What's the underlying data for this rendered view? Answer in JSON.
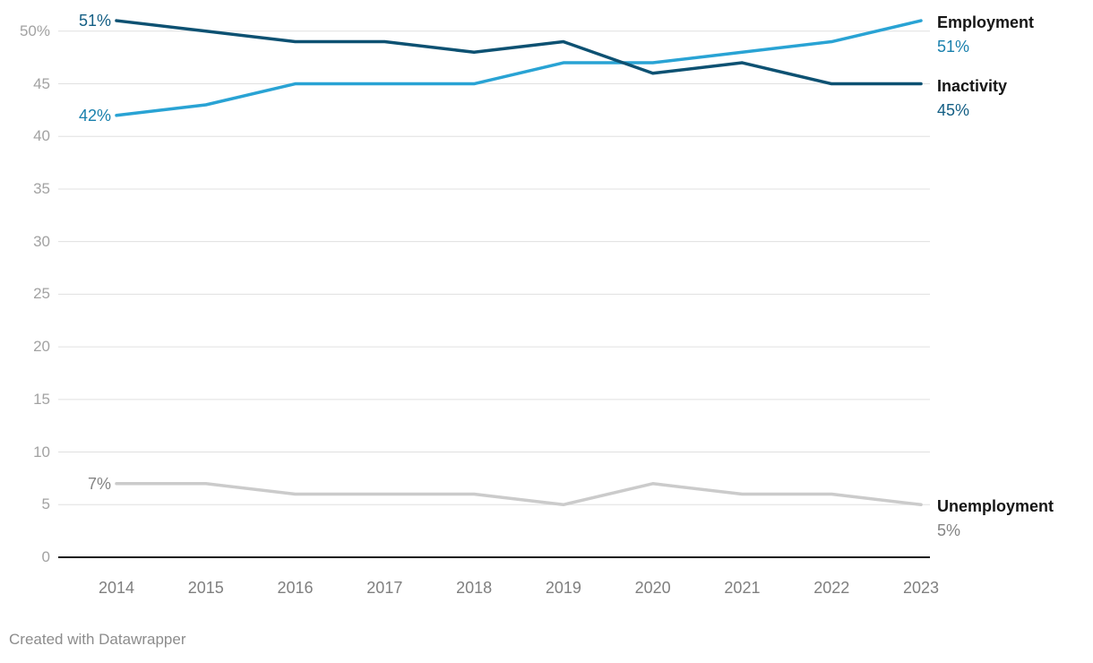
{
  "chart_data": {
    "type": "line",
    "title": "",
    "xlabel": "",
    "ylabel": "",
    "x": [
      2014,
      2015,
      2016,
      2017,
      2018,
      2019,
      2020,
      2021,
      2022,
      2023
    ],
    "series": [
      {
        "name": "Employment",
        "values": [
          42,
          43,
          45,
          45,
          45,
          47,
          47,
          48,
          49,
          51
        ],
        "color": "#29a3d4",
        "label_color": "#1980ad",
        "start_label": "42%",
        "end_label": "51%"
      },
      {
        "name": "Inactivity",
        "values": [
          51,
          50,
          49,
          49,
          48,
          49,
          46,
          47,
          45,
          45
        ],
        "color": "#0d5172",
        "label_color": "#135e84",
        "start_label": "51%",
        "end_label": "45%"
      },
      {
        "name": "Unemployment",
        "values": [
          7,
          7,
          6,
          6,
          6,
          5,
          7,
          6,
          6,
          5
        ],
        "color": "#cbcbcb",
        "label_color": "#848484",
        "start_label": "7%",
        "end_label": "5%"
      }
    ],
    "yticks": [
      0,
      5,
      10,
      15,
      20,
      25,
      30,
      35,
      40,
      45,
      50
    ],
    "ytick_labels": [
      "0",
      "5",
      "10",
      "15",
      "20",
      "25",
      "30",
      "35",
      "40",
      "45",
      "50%"
    ],
    "ylim": [
      0,
      53
    ],
    "grid": "horizontal",
    "legend_position": "right-edge-direct-labels"
  },
  "footer": {
    "credit": "Created with Datawrapper"
  },
  "styles": {
    "background": "#ffffff",
    "grid_color": "#e0e0e0",
    "axis_color": "#161616",
    "ytick_color": "#a2a2a2",
    "xtick_color": "#7f7f7f",
    "series_name_color": "#161616",
    "credit_color": "#8c8c8c"
  }
}
